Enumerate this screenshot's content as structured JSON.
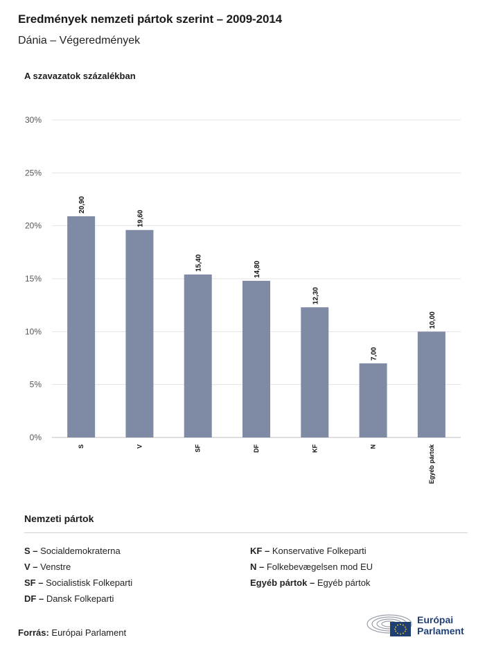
{
  "header": {
    "title": "Eredmények nemzeti pártok szerint – 2009-2014",
    "subtitle": "Dánia – Végeredmények"
  },
  "chart_data": {
    "type": "bar",
    "ylabel": "A szavazatok százalékban",
    "categories": [
      "S",
      "V",
      "SF",
      "DF",
      "KF",
      "N",
      "Egyéb pártok"
    ],
    "values": [
      20.9,
      19.6,
      15.4,
      14.8,
      12.3,
      7.0,
      10.0
    ],
    "value_labels": [
      "20,90",
      "19,60",
      "15,40",
      "14,80",
      "12,30",
      "7,00",
      "10,00"
    ],
    "ylim": [
      0,
      30
    ],
    "yticks": [
      0,
      5,
      10,
      15,
      20,
      25,
      30
    ],
    "ytick_labels": [
      "0%",
      "5%",
      "10%",
      "15%",
      "20%",
      "25%",
      "30%"
    ],
    "grid": true,
    "bar_color": "#7f8aa5"
  },
  "legend": {
    "title": "Nemzeti pártok",
    "items": [
      {
        "code": "S",
        "sep": " – ",
        "name": "Socialdemokraterna"
      },
      {
        "code": "V",
        "sep": " – ",
        "name": "Venstre"
      },
      {
        "code": "SF",
        "sep": " – ",
        "name": "Socialistisk Folkeparti"
      },
      {
        "code": "DF",
        "sep": " – ",
        "name": "Dansk Folkeparti"
      },
      {
        "code": "KF",
        "sep": " – ",
        "name": "Konservative Folkeparti"
      },
      {
        "code": "N",
        "sep": " – ",
        "name": "Folkebevægelsen mod EU"
      },
      {
        "code": "Egyéb pártok",
        "sep": " – ",
        "name": "Egyéb pártok"
      }
    ]
  },
  "footer": {
    "source_label": "Forrás:",
    "source_value": " Európai Parlament",
    "logo_line1": "Európai",
    "logo_line2": "Parlament"
  },
  "logo_colors": {
    "blue": "#1f3f73",
    "star": "#ffd617"
  }
}
